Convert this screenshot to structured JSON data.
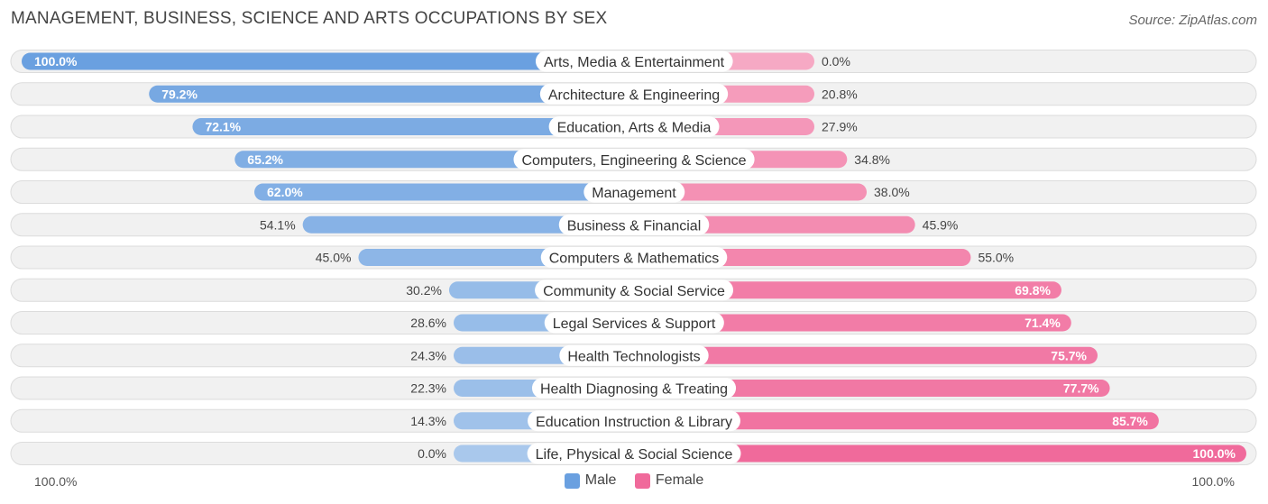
{
  "header": {
    "title": "MANAGEMENT, BUSINESS, SCIENCE AND ARTS OCCUPATIONS BY SEX",
    "source": "Source: ZipAtlas.com"
  },
  "axis": {
    "left_label": "100.0%",
    "right_label": "100.0%"
  },
  "legend": {
    "male": "Male",
    "female": "Female"
  },
  "colors": {
    "male_strong": "#6aa0e0",
    "male_light": "#a9c8ec",
    "female_strong": "#f06a9b",
    "female_light": "#f6a9c4",
    "row_bg": "#f1f1f1",
    "row_border": "#dcdcdc"
  },
  "chart_data": {
    "type": "bar",
    "orientation": "horizontal-diverging",
    "title": "MANAGEMENT, BUSINESS, SCIENCE AND ARTS OCCUPATIONS BY SEX",
    "xlim": [
      -100,
      100
    ],
    "categories": [
      "Arts, Media & Entertainment",
      "Architecture & Engineering",
      "Education, Arts & Media",
      "Computers, Engineering & Science",
      "Management",
      "Business & Financial",
      "Computers & Mathematics",
      "Community & Social Service",
      "Legal Services & Support",
      "Health Technologists",
      "Health Diagnosing & Treating",
      "Education Instruction & Library",
      "Life, Physical & Social Science"
    ],
    "series": [
      {
        "name": "Male",
        "values": [
          100.0,
          79.2,
          72.1,
          65.2,
          62.0,
          54.1,
          45.0,
          30.2,
          28.6,
          24.3,
          22.3,
          14.3,
          0.0
        ],
        "labels": [
          "100.0%",
          "79.2%",
          "72.1%",
          "65.2%",
          "62.0%",
          "54.1%",
          "45.0%",
          "30.2%",
          "28.6%",
          "24.3%",
          "22.3%",
          "14.3%",
          "0.0%"
        ]
      },
      {
        "name": "Female",
        "values": [
          0.0,
          20.8,
          27.9,
          34.8,
          38.0,
          45.9,
          55.0,
          69.8,
          71.4,
          75.7,
          77.7,
          85.7,
          100.0
        ],
        "labels": [
          "0.0%",
          "20.8%",
          "27.9%",
          "34.8%",
          "38.0%",
          "45.9%",
          "55.0%",
          "69.8%",
          "71.4%",
          "75.7%",
          "77.7%",
          "85.7%",
          "100.0%"
        ]
      }
    ]
  }
}
